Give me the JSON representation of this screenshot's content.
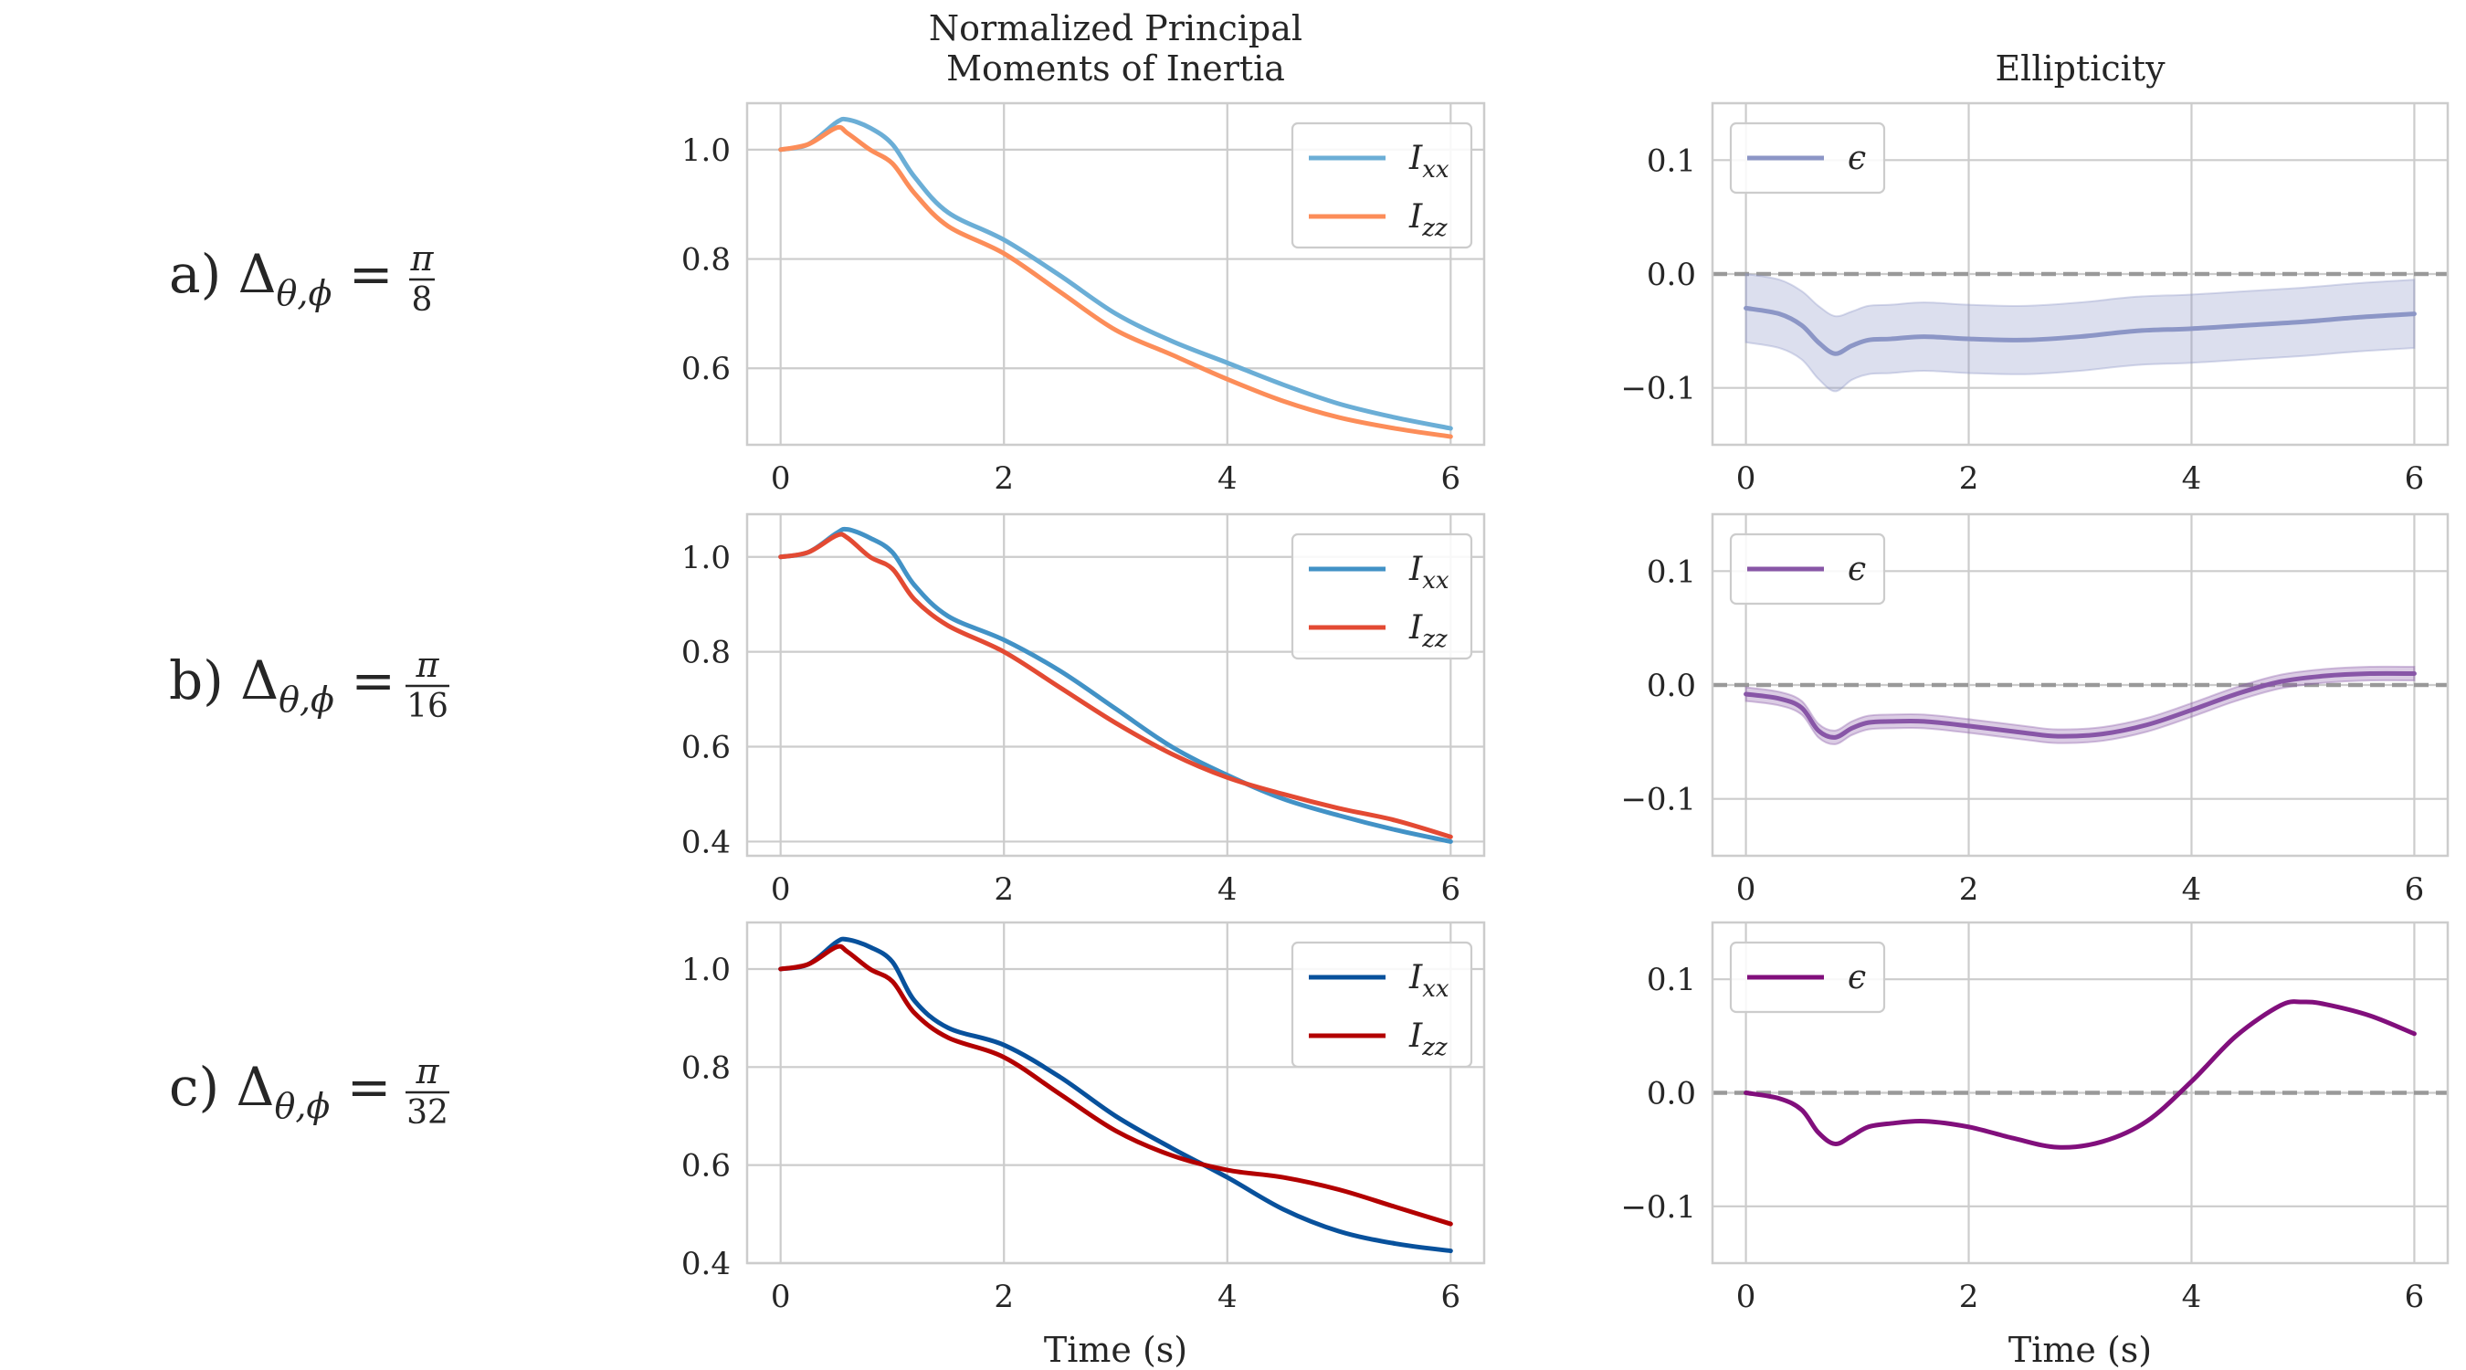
{
  "figure": {
    "column_titles": [
      "Normalized Principal\nMoments of Inertia",
      "Ellipticity"
    ]
  },
  "rows": [
    {
      "prefix": "a)",
      "denominator": "8"
    },
    {
      "prefix": "b)",
      "denominator": "16"
    },
    {
      "prefix": "c)",
      "denominator": "32"
    }
  ],
  "colors": {
    "row_a": {
      "Ixx": "#6baed6",
      "Izz": "#fc8d59",
      "eps": "#8c96c6"
    },
    "row_b": {
      "Ixx": "#4292c6",
      "Izz": "#e34a33",
      "eps": "#8856a7"
    },
    "row_c": {
      "Ixx": "#08519c",
      "Izz": "#b30000",
      "eps": "#810f7c"
    },
    "zero_line": "#999999",
    "grid": "#cccccc"
  },
  "chart_data": [
    {
      "type": "line",
      "title": "Normalized Principal\nMoments of Inertia",
      "xlabel": "",
      "ylabel": "",
      "xlim": [
        -0.3,
        6.3
      ],
      "ylim": [
        0.46,
        1.085
      ],
      "yticks": [
        0.6,
        0.8,
        1.0
      ],
      "xticks": [
        0,
        2,
        4,
        6
      ],
      "legend": "top-right",
      "grid": true,
      "series": [
        {
          "name": "I_xx",
          "x": [
            0,
            0.25,
            0.5,
            0.6,
            0.8,
            1.0,
            1.2,
            1.5,
            2.0,
            2.5,
            3.0,
            3.5,
            4.0,
            4.5,
            5.0,
            5.5,
            6.0
          ],
          "values": [
            1.0,
            1.01,
            1.05,
            1.055,
            1.04,
            1.01,
            0.95,
            0.885,
            0.835,
            0.77,
            0.7,
            0.65,
            0.61,
            0.57,
            0.535,
            0.51,
            0.49
          ]
        },
        {
          "name": "I_zz",
          "x": [
            0,
            0.25,
            0.5,
            0.6,
            0.8,
            1.0,
            1.2,
            1.5,
            2.0,
            2.5,
            3.0,
            3.5,
            4.0,
            4.5,
            5.0,
            5.5,
            6.0
          ],
          "values": [
            1.0,
            1.01,
            1.04,
            1.03,
            1.0,
            0.975,
            0.92,
            0.86,
            0.81,
            0.74,
            0.67,
            0.625,
            0.58,
            0.54,
            0.51,
            0.49,
            0.475
          ]
        }
      ]
    },
    {
      "type": "line",
      "title": "Ellipticity",
      "xlabel": "",
      "ylabel": "",
      "xlim": [
        -0.3,
        6.3
      ],
      "ylim": [
        -0.15,
        0.15
      ],
      "yticks": [
        -0.1,
        0.0,
        0.1
      ],
      "xticks": [
        0,
        2,
        4,
        6
      ],
      "legend": "top-left",
      "grid": true,
      "reference_line": 0.0,
      "series": [
        {
          "name": "ϵ",
          "x": [
            0,
            0.3,
            0.5,
            0.65,
            0.8,
            0.95,
            1.1,
            1.3,
            1.6,
            2.0,
            2.5,
            3.0,
            3.5,
            4.0,
            4.5,
            5.0,
            5.5,
            6.0
          ],
          "values": [
            -0.03,
            -0.035,
            -0.045,
            -0.06,
            -0.07,
            -0.063,
            -0.058,
            -0.057,
            -0.055,
            -0.057,
            -0.058,
            -0.055,
            -0.05,
            -0.048,
            -0.045,
            -0.042,
            -0.038,
            -0.035
          ],
          "band": [
            0.03,
            0.03,
            0.03,
            0.032,
            0.033,
            0.03,
            0.03,
            0.03,
            0.03,
            0.03,
            0.03,
            0.03,
            0.03,
            0.03,
            0.03,
            0.03,
            0.03,
            0.03
          ]
        }
      ]
    },
    {
      "type": "line",
      "xlabel": "",
      "ylabel": "",
      "xlim": [
        -0.3,
        6.3
      ],
      "ylim": [
        0.37,
        1.09
      ],
      "yticks": [
        0.4,
        0.6,
        0.8,
        1.0
      ],
      "xticks": [
        0,
        2,
        4,
        6
      ],
      "legend": "top-right",
      "grid": true,
      "series": [
        {
          "name": "I_xx",
          "x": [
            0,
            0.25,
            0.5,
            0.6,
            0.8,
            1.0,
            1.2,
            1.5,
            2.0,
            2.5,
            3.0,
            3.5,
            4.0,
            4.5,
            5.0,
            5.5,
            6.0
          ],
          "values": [
            1.0,
            1.01,
            1.05,
            1.058,
            1.04,
            1.01,
            0.94,
            0.875,
            0.825,
            0.76,
            0.68,
            0.6,
            0.54,
            0.49,
            0.455,
            0.425,
            0.4
          ]
        },
        {
          "name": "I_zz",
          "x": [
            0,
            0.25,
            0.5,
            0.6,
            0.8,
            1.0,
            1.2,
            1.5,
            2.0,
            2.5,
            3.0,
            3.5,
            4.0,
            4.5,
            5.0,
            5.5,
            6.0
          ],
          "values": [
            1.0,
            1.01,
            1.045,
            1.04,
            1.0,
            0.975,
            0.91,
            0.855,
            0.8,
            0.725,
            0.65,
            0.585,
            0.535,
            0.5,
            0.47,
            0.445,
            0.41
          ]
        }
      ]
    },
    {
      "type": "line",
      "xlabel": "",
      "ylabel": "",
      "xlim": [
        -0.3,
        6.3
      ],
      "ylim": [
        -0.15,
        0.15
      ],
      "yticks": [
        -0.1,
        0.0,
        0.1
      ],
      "xticks": [
        0,
        2,
        4,
        6
      ],
      "legend": "top-left",
      "grid": true,
      "reference_line": 0.0,
      "series": [
        {
          "name": "ϵ",
          "x": [
            0,
            0.3,
            0.5,
            0.65,
            0.8,
            0.95,
            1.1,
            1.3,
            1.6,
            2.0,
            2.5,
            2.8,
            3.2,
            3.6,
            4.0,
            4.4,
            4.8,
            5.2,
            5.6,
            6.0
          ],
          "values": [
            -0.008,
            -0.012,
            -0.02,
            -0.04,
            -0.046,
            -0.038,
            -0.033,
            -0.032,
            -0.032,
            -0.036,
            -0.042,
            -0.045,
            -0.043,
            -0.035,
            -0.022,
            -0.008,
            0.003,
            0.008,
            0.01,
            0.01
          ],
          "band": [
            0.006,
            0.006,
            0.006,
            0.006,
            0.006,
            0.006,
            0.006,
            0.006,
            0.006,
            0.006,
            0.006,
            0.006,
            0.006,
            0.006,
            0.006,
            0.006,
            0.006,
            0.006,
            0.006,
            0.006
          ]
        }
      ]
    },
    {
      "type": "line",
      "xlabel": "Time (s)",
      "ylabel": "",
      "xlim": [
        -0.3,
        6.3
      ],
      "ylim": [
        0.4,
        1.095
      ],
      "yticks": [
        0.4,
        0.6,
        0.8,
        1.0
      ],
      "xticks": [
        0,
        2,
        4,
        6
      ],
      "legend": "top-right",
      "grid": true,
      "series": [
        {
          "name": "I_xx",
          "x": [
            0,
            0.25,
            0.5,
            0.6,
            0.8,
            1.0,
            1.2,
            1.5,
            2.0,
            2.5,
            3.0,
            3.5,
            4.0,
            4.5,
            5.0,
            5.5,
            6.0
          ],
          "values": [
            1.0,
            1.01,
            1.055,
            1.06,
            1.045,
            1.015,
            0.935,
            0.88,
            0.845,
            0.78,
            0.7,
            0.635,
            0.575,
            0.51,
            0.465,
            0.44,
            0.425
          ]
        },
        {
          "name": "I_zz",
          "x": [
            0,
            0.25,
            0.5,
            0.6,
            0.8,
            1.0,
            1.2,
            1.5,
            2.0,
            2.5,
            3.0,
            3.5,
            4.0,
            4.5,
            5.0,
            5.5,
            6.0
          ],
          "values": [
            1.0,
            1.01,
            1.045,
            1.035,
            1.0,
            0.975,
            0.91,
            0.86,
            0.82,
            0.745,
            0.67,
            0.62,
            0.59,
            0.575,
            0.55,
            0.515,
            0.48
          ]
        }
      ]
    },
    {
      "type": "line",
      "xlabel": "Time (s)",
      "ylabel": "",
      "xlim": [
        -0.3,
        6.3
      ],
      "ylim": [
        -0.15,
        0.15
      ],
      "yticks": [
        -0.1,
        0.0,
        0.1
      ],
      "xticks": [
        0,
        2,
        4,
        6
      ],
      "legend": "top-left",
      "grid": true,
      "reference_line": 0.0,
      "series": [
        {
          "name": "ϵ",
          "x": [
            0,
            0.3,
            0.5,
            0.65,
            0.8,
            0.95,
            1.1,
            1.3,
            1.6,
            2.0,
            2.4,
            2.8,
            3.2,
            3.6,
            4.0,
            4.4,
            4.8,
            5.0,
            5.2,
            5.6,
            6.0
          ],
          "values": [
            0.0,
            -0.005,
            -0.015,
            -0.035,
            -0.045,
            -0.038,
            -0.03,
            -0.027,
            -0.025,
            -0.03,
            -0.04,
            -0.048,
            -0.043,
            -0.025,
            0.01,
            0.05,
            0.077,
            0.08,
            0.078,
            0.068,
            0.052
          ]
        }
      ]
    }
  ]
}
